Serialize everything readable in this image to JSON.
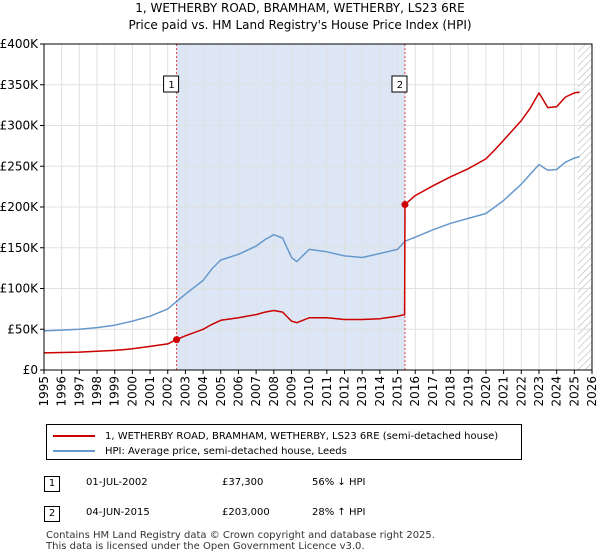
{
  "title_line1": "1, WETHERBY ROAD, BRAMHAM, WETHERBY, LS23 6RE",
  "title_line2": "Price paid vs. HM Land Registry's House Price Index (HPI)",
  "colors": {
    "red": "#cc0000",
    "blue": "#6699cc",
    "shade": "#dde6f5",
    "grid": "#e0e0e0",
    "vline": "#dd4444"
  },
  "legend": {
    "red_label": "1, WETHERBY ROAD, BRAMHAM, WETHERBY, LS23 6RE (semi-detached house)",
    "blue_label": "HPI: Average price, semi-detached house, Leeds"
  },
  "sales": [
    {
      "id": "1",
      "date": "01-JUL-2002",
      "price": "£37,300",
      "hpi_change": "56% ↓ HPI",
      "year": 2002.5,
      "value": 37300
    },
    {
      "id": "2",
      "date": "04-JUN-2015",
      "price": "£203,000",
      "hpi_change": "28% ↑ HPI",
      "year": 2015.42,
      "value": 203000
    }
  ],
  "footer": {
    "line1": "Contains HM Land Registry data © Crown copyright and database right 2025.",
    "line2": "This data is licensed under the Open Government Licence v3.0."
  },
  "chart_data": {
    "type": "line",
    "title": "1, WETHERBY ROAD, BRAMHAM, WETHERBY, LS23 6RE",
    "subtitle": "Price paid vs. HM Land Registry's House Price Index (HPI)",
    "xlabel": "",
    "ylabel": "",
    "xlim": [
      1995,
      2026
    ],
    "ylim": [
      0,
      400000
    ],
    "x_ticks": [
      "1995",
      "1996",
      "1997",
      "1998",
      "1999",
      "2000",
      "2001",
      "2002",
      "2003",
      "2004",
      "2005",
      "2006",
      "2007",
      "2008",
      "2009",
      "2010",
      "2011",
      "2012",
      "2013",
      "2014",
      "2015",
      "2016",
      "2017",
      "2018",
      "2019",
      "2020",
      "2021",
      "2022",
      "2023",
      "2024",
      "2025",
      "2026"
    ],
    "y_ticks": [
      {
        "value": 0,
        "label": "£0"
      },
      {
        "value": 50000,
        "label": "£50K"
      },
      {
        "value": 100000,
        "label": "£100K"
      },
      {
        "value": 150000,
        "label": "£150K"
      },
      {
        "value": 200000,
        "label": "£200K"
      },
      {
        "value": 250000,
        "label": "£250K"
      },
      {
        "value": 300000,
        "label": "£300K"
      },
      {
        "value": 350000,
        "label": "£350K"
      },
      {
        "value": 400000,
        "label": "£400K"
      }
    ],
    "shaded_range": [
      2002.5,
      2015.42
    ],
    "hatch_from": 2025.2,
    "series": [
      {
        "name": "HPI: Average price, semi-detached house, Leeds",
        "color": "#6699cc",
        "x": [
          1995,
          1996,
          1997,
          1998,
          1999,
          2000,
          2001,
          2002,
          2002.5,
          2003,
          2004,
          2004.5,
          2005,
          2006,
          2007,
          2007.5,
          2008,
          2008.5,
          2009,
          2009.3,
          2010,
          2011,
          2012,
          2013,
          2014,
          2015,
          2015.42,
          2016,
          2017,
          2018,
          2019,
          2020,
          2020.5,
          2021,
          2022,
          2022.5,
          2023,
          2023.5,
          2024,
          2024.5,
          2025,
          2025.3
        ],
        "y": [
          48000,
          49000,
          50000,
          52000,
          55000,
          60000,
          66000,
          75000,
          84000,
          93000,
          110000,
          124000,
          135000,
          142000,
          152000,
          160000,
          166000,
          162000,
          138000,
          133000,
          148000,
          145000,
          140000,
          138000,
          143000,
          148000,
          158000,
          163000,
          172000,
          180000,
          186000,
          192000,
          200000,
          208000,
          228000,
          240000,
          252000,
          245000,
          246000,
          255000,
          260000,
          262000
        ]
      },
      {
        "name": "1, WETHERBY ROAD, BRAMHAM, WETHERBY, LS23 6RE (semi-detached house)",
        "color": "#cc0000",
        "x": [
          1995,
          1996,
          1997,
          1998,
          1999,
          2000,
          2001,
          2002,
          2002.5,
          2003,
          2004,
          2004.5,
          2005,
          2006,
          2007,
          2007.5,
          2008,
          2008.5,
          2009,
          2009.3,
          2010,
          2011,
          2012,
          2013,
          2014,
          2015,
          2015.4,
          2015.42,
          2016,
          2017,
          2018,
          2019,
          2020,
          2020.5,
          2021,
          2022,
          2022.5,
          2023,
          2023.5,
          2024,
          2024.5,
          2025,
          2025.3
        ],
        "y": [
          21000,
          21500,
          22000,
          23000,
          24000,
          26000,
          29000,
          32000,
          37300,
          42000,
          50000,
          56000,
          61000,
          64000,
          68000,
          71000,
          73000,
          71000,
          60000,
          58000,
          64000,
          64000,
          62000,
          62000,
          63000,
          66000,
          68000,
          203000,
          214000,
          226000,
          237000,
          247000,
          259000,
          270000,
          282000,
          306000,
          321000,
          340000,
          322000,
          323000,
          335000,
          340000,
          341000
        ]
      }
    ]
  }
}
